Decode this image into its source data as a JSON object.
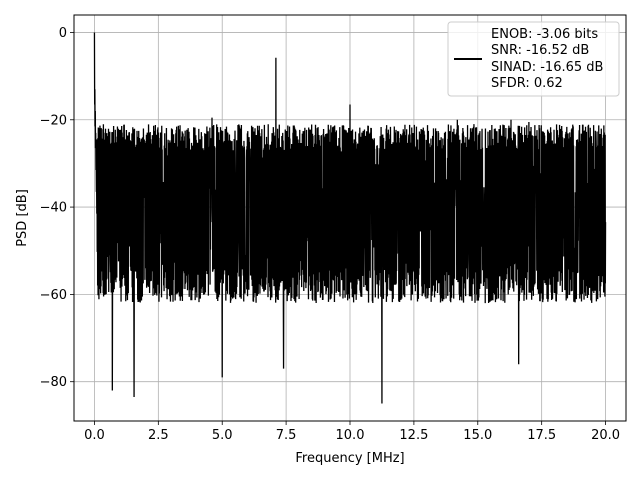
{
  "chart_data": {
    "type": "line",
    "title": "",
    "xlabel": "Frequency [MHz]",
    "ylabel": "PSD [dB]",
    "xlim": [
      -0.8,
      20.8
    ],
    "ylim": [
      -89,
      4
    ],
    "x_ticks": [
      0.0,
      2.5,
      5.0,
      7.5,
      10.0,
      12.5,
      15.0,
      17.5,
      20.0
    ],
    "x_tick_labels": [
      "0.0",
      "2.5",
      "5.0",
      "7.5",
      "10.0",
      "12.5",
      "15.0",
      "17.5",
      "20.0"
    ],
    "y_ticks": [
      0,
      -20,
      -40,
      -60,
      -80
    ],
    "y_tick_labels": [
      "0",
      "−20",
      "−40",
      "−60",
      "−80"
    ],
    "grid": true,
    "legend": {
      "placement": "top-right",
      "entries": [
        "ENOB: -3.06 bits",
        "SNR: -16.52 dB",
        "SINAD: -16.65 dB",
        "SFDR: 0.62"
      ]
    },
    "series": [
      {
        "color": "#000000",
        "x_range_mhz": [
          0,
          20
        ],
        "noise_floor_db": {
          "typical_max": -24,
          "typical_min": -58,
          "mean": -40
        },
        "peaks": [
          {
            "x": 0.0,
            "y": 0.0
          },
          {
            "x": 7.1,
            "y": -5.8
          },
          {
            "x": 10.0,
            "y": -16.5
          },
          {
            "x": 4.6,
            "y": -19.5
          },
          {
            "x": 14.2,
            "y": -20.0
          },
          {
            "x": 16.3,
            "y": -20.0
          },
          {
            "x": 17.0,
            "y": -20.5
          }
        ],
        "troughs": [
          {
            "x": 0.7,
            "y": -82.0
          },
          {
            "x": 1.55,
            "y": -83.5
          },
          {
            "x": 5.0,
            "y": -79.0
          },
          {
            "x": 7.4,
            "y": -77.0
          },
          {
            "x": 11.25,
            "y": -85.0
          },
          {
            "x": 16.6,
            "y": -76.0
          }
        ]
      }
    ]
  }
}
